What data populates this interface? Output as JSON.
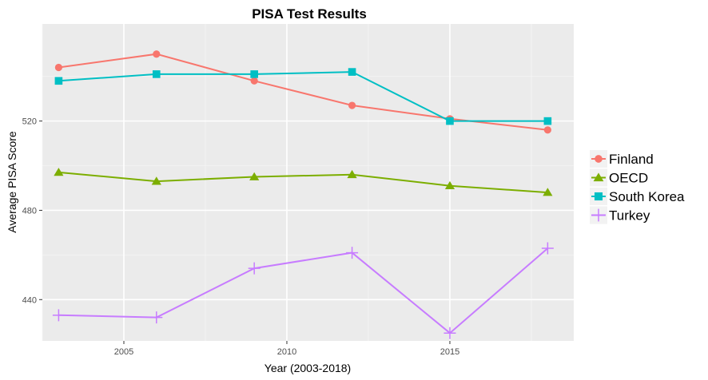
{
  "chart_data": {
    "type": "line",
    "title": "PISA Test Results",
    "xlabel": "Year (2003-2018)",
    "ylabel": "Average PISA Score",
    "xlim": [
      2002.5,
      2018.8
    ],
    "ylim": [
      421.5,
      563.5
    ],
    "x_ticks": [
      2005,
      2010,
      2015
    ],
    "y_ticks": [
      440,
      480,
      520
    ],
    "grid": true,
    "legend_position": "right",
    "x": [
      2003,
      2006,
      2009,
      2012,
      2015,
      2018
    ],
    "series": [
      {
        "name": "Finland",
        "color": "#F8766D",
        "marker": "circle",
        "values": [
          544,
          550,
          538,
          527,
          521,
          516
        ]
      },
      {
        "name": "OECD",
        "color": "#7CAE00",
        "marker": "triangle",
        "values": [
          497,
          493,
          495,
          496,
          491,
          488
        ]
      },
      {
        "name": "South Korea",
        "color": "#00BFC4",
        "marker": "square",
        "values": [
          538,
          541,
          541,
          542,
          520,
          520
        ]
      },
      {
        "name": "Turkey",
        "color": "#C77CFF",
        "marker": "plus",
        "values": [
          433,
          432,
          454,
          461,
          425,
          463
        ]
      }
    ]
  }
}
